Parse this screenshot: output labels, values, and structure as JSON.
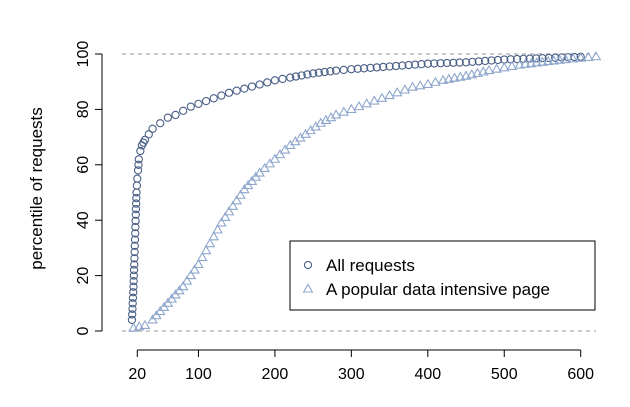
{
  "chart_data": {
    "type": "scatter",
    "title": "",
    "xlabel": "",
    "ylabel": "percentile of requests",
    "xlim": [
      0,
      620
    ],
    "ylim": [
      0,
      100
    ],
    "x_ticks": [
      20,
      100,
      200,
      300,
      400,
      500,
      600
    ],
    "y_ticks": [
      0,
      20,
      40,
      60,
      80,
      100
    ],
    "reference_lines_y": [
      0,
      100
    ],
    "legend": {
      "placement": "bottom-right",
      "entries": [
        {
          "label": "All requests",
          "marker": "circle",
          "color": "#4a5f86"
        },
        {
          "label": "A popular data intensive page",
          "marker": "triangle",
          "color": "#8ea6cc"
        }
      ]
    },
    "series": [
      {
        "name": "All requests",
        "marker": "circle",
        "color": "#4a5f86",
        "x": [
          13,
          14,
          15,
          16,
          17,
          18,
          19,
          20,
          21,
          22,
          24,
          26,
          28,
          30,
          35,
          40,
          50,
          60,
          70,
          80,
          90,
          100,
          120,
          140,
          160,
          180,
          200,
          220,
          250,
          280,
          300,
          350,
          400,
          450,
          500,
          550,
          600
        ],
        "y": [
          4,
          10,
          16,
          24,
          33,
          42,
          50,
          55,
          58,
          62,
          65,
          67,
          68,
          69,
          71,
          73,
          75,
          77,
          78,
          79.5,
          81,
          82,
          84,
          86,
          87.5,
          89,
          90.5,
          91.5,
          93,
          94,
          94.5,
          95.5,
          96.5,
          97,
          98,
          98.5,
          99
        ]
      },
      {
        "name": "A popular data intensive page",
        "marker": "triangle",
        "color": "#8ea6cc",
        "x": [
          15,
          30,
          40,
          50,
          60,
          70,
          80,
          90,
          100,
          110,
          120,
          130,
          140,
          150,
          160,
          180,
          200,
          220,
          240,
          260,
          280,
          300,
          320,
          340,
          360,
          380,
          400,
          420,
          450,
          480,
          500,
          520,
          550,
          580,
          600,
          620
        ],
        "y": [
          1,
          2,
          4,
          7,
          10,
          13,
          16,
          20,
          24,
          29,
          34,
          39,
          43,
          47,
          51,
          57,
          62,
          67,
          71,
          75,
          78,
          80,
          82,
          84,
          86,
          88,
          89,
          90.5,
          92,
          94,
          95,
          96,
          97,
          98,
          98.5,
          99
        ]
      }
    ]
  }
}
